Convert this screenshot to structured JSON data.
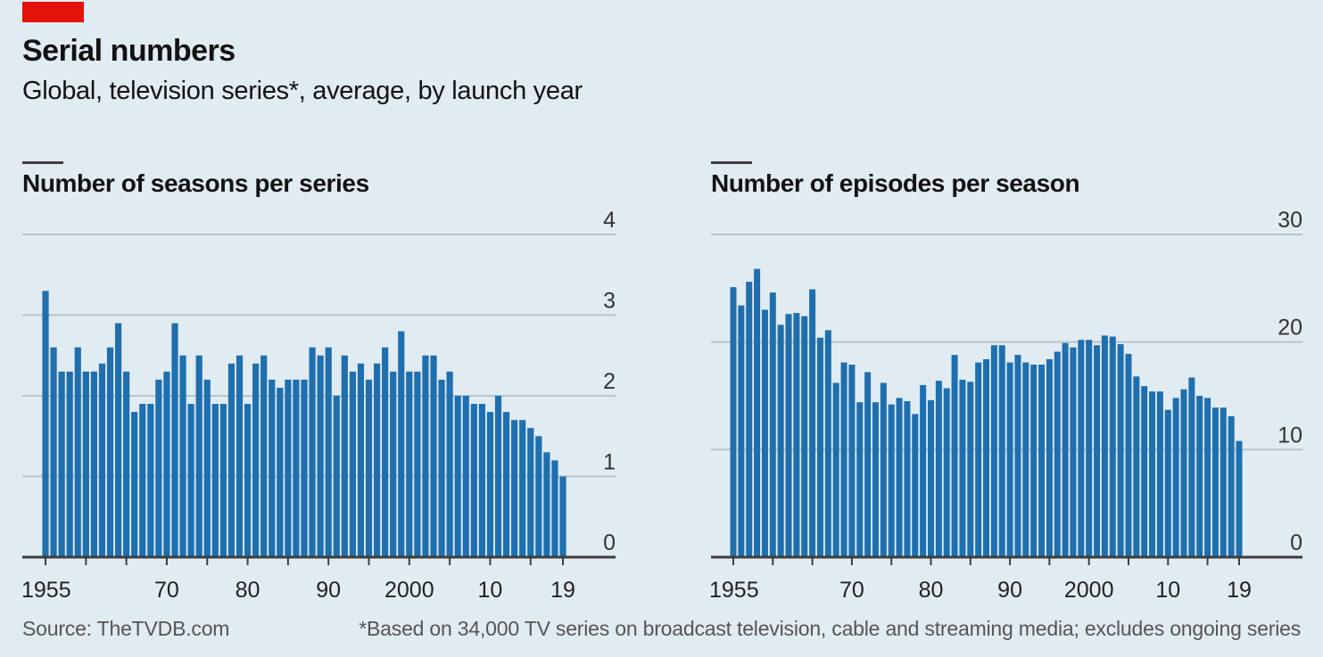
{
  "header": {
    "title": "Serial numbers",
    "subtitle": "Global, television series*, average, by launch year"
  },
  "footer": {
    "source": "Source: TheTVDB.com",
    "note": "*Based on 34,000 TV series on broadcast television, cable and streaming media; excludes ongoing series"
  },
  "colors": {
    "background": "#e1ebf2",
    "bar": "#1f6fae",
    "accent": "#e3120b",
    "grid": "#b7c2ca",
    "axis": "#3d3d3d"
  },
  "chart_data": [
    {
      "type": "bar",
      "title": "Number of seasons per series",
      "xlabel": "",
      "ylabel": "",
      "ylim": [
        0,
        4
      ],
      "yticks": [
        0,
        1,
        2,
        3,
        4
      ],
      "ytick_labels": [
        "0",
        "1",
        "2",
        "3",
        "4"
      ],
      "y_axis_side": "right",
      "grid": true,
      "x": [
        1955,
        1956,
        1957,
        1958,
        1959,
        1960,
        1961,
        1962,
        1963,
        1964,
        1965,
        1966,
        1967,
        1968,
        1969,
        1970,
        1971,
        1972,
        1973,
        1974,
        1975,
        1976,
        1977,
        1978,
        1979,
        1980,
        1981,
        1982,
        1983,
        1984,
        1985,
        1986,
        1987,
        1988,
        1989,
        1990,
        1991,
        1992,
        1993,
        1994,
        1995,
        1996,
        1997,
        1998,
        1999,
        2000,
        2001,
        2002,
        2003,
        2004,
        2005,
        2006,
        2007,
        2008,
        2009,
        2010,
        2011,
        2012,
        2013,
        2014,
        2015,
        2016,
        2017,
        2018,
        2019
      ],
      "values": [
        3.3,
        2.6,
        2.3,
        2.3,
        2.6,
        2.3,
        2.3,
        2.4,
        2.6,
        2.9,
        2.3,
        1.8,
        1.9,
        1.9,
        2.2,
        2.3,
        2.9,
        2.5,
        1.9,
        2.5,
        2.2,
        1.9,
        1.9,
        2.4,
        2.5,
        1.9,
        2.4,
        2.5,
        2.2,
        2.1,
        2.2,
        2.2,
        2.2,
        2.6,
        2.5,
        2.6,
        2.0,
        2.5,
        2.3,
        2.4,
        2.2,
        2.4,
        2.6,
        2.3,
        2.8,
        2.3,
        2.3,
        2.5,
        2.5,
        2.2,
        2.3,
        2.0,
        2.0,
        1.9,
        1.9,
        1.8,
        2.0,
        1.8,
        1.7,
        1.7,
        1.6,
        1.5,
        1.3,
        1.2,
        1.0
      ],
      "xticks_every": 5,
      "xtick_labels": [
        {
          "year": 1955,
          "label": "1955"
        },
        {
          "year": 1970,
          "label": "70"
        },
        {
          "year": 1980,
          "label": "80"
        },
        {
          "year": 1990,
          "label": "90"
        },
        {
          "year": 2000,
          "label": "2000"
        },
        {
          "year": 2010,
          "label": "10"
        },
        {
          "year": 2019,
          "label": "19"
        }
      ]
    },
    {
      "type": "bar",
      "title": "Number of episodes per season",
      "xlabel": "",
      "ylabel": "",
      "ylim": [
        0,
        30
      ],
      "yticks": [
        0,
        10,
        20,
        30
      ],
      "ytick_labels": [
        "0",
        "10",
        "20",
        "30"
      ],
      "y_axis_side": "right",
      "grid": true,
      "x": [
        1955,
        1956,
        1957,
        1958,
        1959,
        1960,
        1961,
        1962,
        1963,
        1964,
        1965,
        1966,
        1967,
        1968,
        1969,
        1970,
        1971,
        1972,
        1973,
        1974,
        1975,
        1976,
        1977,
        1978,
        1979,
        1980,
        1981,
        1982,
        1983,
        1984,
        1985,
        1986,
        1987,
        1988,
        1989,
        1990,
        1991,
        1992,
        1993,
        1994,
        1995,
        1996,
        1997,
        1998,
        1999,
        2000,
        2001,
        2002,
        2003,
        2004,
        2005,
        2006,
        2007,
        2008,
        2009,
        2010,
        2011,
        2012,
        2013,
        2014,
        2015,
        2016,
        2017,
        2018,
        2019
      ],
      "values": [
        25.1,
        23.4,
        25.6,
        26.8,
        23.0,
        24.6,
        21.6,
        22.6,
        22.7,
        22.4,
        24.9,
        20.4,
        21.1,
        16.2,
        18.1,
        17.9,
        14.4,
        17.2,
        14.4,
        16.2,
        14.2,
        14.8,
        14.5,
        13.3,
        16.0,
        14.6,
        16.4,
        15.7,
        18.8,
        16.5,
        16.3,
        18.1,
        18.4,
        19.7,
        19.7,
        18.1,
        18.8,
        18.1,
        17.9,
        17.9,
        18.4,
        19.1,
        19.9,
        19.5,
        20.2,
        20.2,
        19.7,
        20.6,
        20.5,
        19.8,
        18.9,
        16.8,
        15.9,
        15.4,
        15.4,
        13.7,
        14.8,
        15.6,
        16.7,
        15.0,
        14.8,
        13.9,
        13.9,
        13.1,
        10.8
      ],
      "xticks_every": 5,
      "xtick_labels": [
        {
          "year": 1955,
          "label": "1955"
        },
        {
          "year": 1970,
          "label": "70"
        },
        {
          "year": 1980,
          "label": "80"
        },
        {
          "year": 1990,
          "label": "90"
        },
        {
          "year": 2000,
          "label": "2000"
        },
        {
          "year": 2010,
          "label": "10"
        },
        {
          "year": 2019,
          "label": "19"
        }
      ]
    }
  ]
}
